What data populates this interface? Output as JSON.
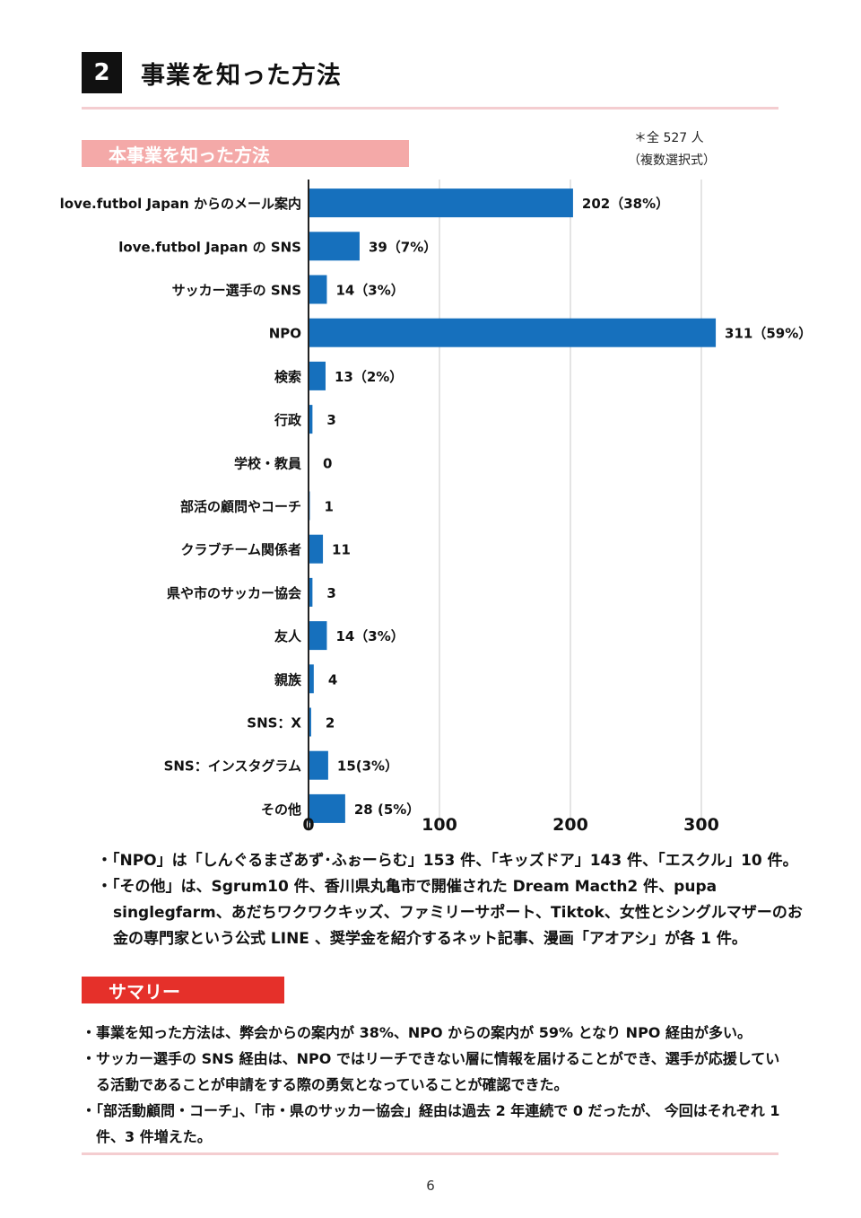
{
  "section": {
    "number": "2",
    "title": "事業を知った方法"
  },
  "chart_banner": "本事業を知った方法",
  "notes": {
    "total": "＊全 527 人",
    "mode": "（複数選択式）"
  },
  "colors": {
    "bar": "#1670bd",
    "chart_banner": "#f4a9a8",
    "summary_banner": "#e5302a",
    "rule": "#f4cdd0"
  },
  "chart_data": {
    "type": "bar",
    "orientation": "horizontal",
    "categories": [
      "love.futbol Japan からのメール案内",
      "love.futbol Japan の SNS",
      "サッカー選手の SNS",
      "NPO",
      "検索",
      "行政",
      "学校・教員",
      "部活の顧問やコーチ",
      "クラブチーム関係者",
      "県や市のサッカー協会",
      "友人",
      "親族",
      "SNS：X",
      "SNS：インスタグラム",
      "その他"
    ],
    "values": [
      202,
      39,
      14,
      311,
      13,
      3,
      0,
      1,
      11,
      3,
      14,
      4,
      2,
      15,
      28
    ],
    "data_labels": [
      "202（38%）",
      "39（7%）",
      "14（3%）",
      "311（59%）",
      "13（2%）",
      "3",
      "0",
      "1",
      "11",
      "3",
      "14（3%）",
      "4",
      "2",
      "15(3%）",
      "28 (5%）"
    ],
    "xticks": [
      "0",
      "100",
      "200",
      "300"
    ],
    "xtick_values": [
      0,
      100,
      200,
      300
    ],
    "xlim": [
      0,
      340
    ],
    "grid": "vertical",
    "legend": "none"
  },
  "bullets": [
    "・「NPO」は「しんぐるまざあず･ふぉーらむ」153 件、「キッズドア」143 件、「エスクル」10 件。",
    "・「その他」は、Sgrum10 件、香川県丸亀市で開催された Dream Macth2 件、pupa singlegfarm、あだちワクワクキッズ、ファミリーサポート、Tiktok、女性とシングルマザーのお金の専門家という公式 LINE 、奨学金を紹介するネット記事、漫画「アオアシ」が各 1 件。"
  ],
  "summary_banner": "サマリー",
  "summary": [
    "・事業を知った方法は、弊会からの案内が 38%、NPO からの案内が 59% となり NPO 経由が多い。",
    "・サッカー選手の SNS 経由は、NPO ではリーチできない層に情報を届けることができ、選手が応援している活動であることが申請をする際の勇気となっていることが確認できた。",
    "・「部活動顧問・コーチ」、「市・県のサッカー協会」経由は過去 2 年連続で 0 だったが、 今回はそれぞれ 1 件、3 件増えた。"
  ],
  "page_number": "6"
}
